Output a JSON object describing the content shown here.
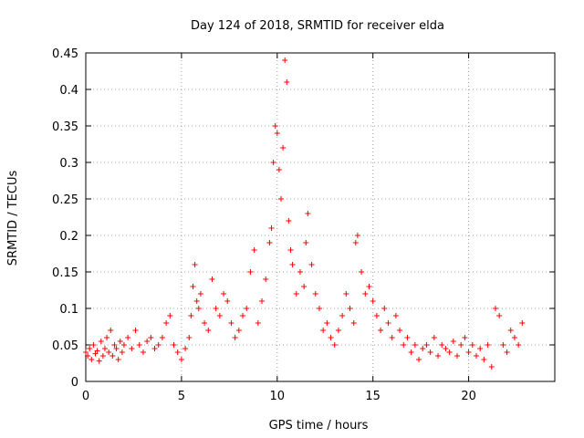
{
  "chart_data": {
    "type": "scatter",
    "title": "Day 124 of 2018, SRMTID for receiver elda",
    "xlabel": "GPS time / hours",
    "ylabel": "SRMTID / TECUs",
    "xlim": [
      0,
      24.5
    ],
    "ylim": [
      0,
      0.45
    ],
    "xticks": [
      0,
      5,
      10,
      15,
      20
    ],
    "yticks": [
      0,
      0.05,
      0.1,
      0.15,
      0.2,
      0.25,
      0.3,
      0.35,
      0.4,
      0.45
    ],
    "grid": true,
    "marker": "+",
    "color": "#ff0000",
    "x_range_observed": [
      0,
      22.8
    ],
    "series": [
      {
        "name": "SRMTID",
        "x": [
          0.0,
          0.1,
          0.2,
          0.3,
          0.4,
          0.5,
          0.6,
          0.7,
          0.8,
          0.9,
          1.0,
          1.1,
          1.2,
          1.3,
          1.4,
          1.5,
          1.6,
          1.7,
          1.8,
          1.9,
          2.0,
          2.2,
          2.4,
          2.6,
          2.8,
          3.0,
          3.2,
          3.4,
          3.6,
          3.8,
          4.0,
          4.2,
          4.4,
          4.6,
          4.8,
          5.0,
          5.2,
          5.4,
          5.5,
          5.6,
          5.7,
          5.8,
          5.9,
          6.0,
          6.2,
          6.4,
          6.6,
          6.8,
          7.0,
          7.2,
          7.4,
          7.6,
          7.8,
          8.0,
          8.2,
          8.4,
          8.6,
          8.8,
          9.0,
          9.2,
          9.4,
          9.6,
          9.7,
          9.8,
          9.9,
          10.0,
          10.1,
          10.2,
          10.3,
          10.4,
          10.5,
          10.6,
          10.7,
          10.8,
          11.0,
          11.2,
          11.4,
          11.5,
          11.6,
          11.8,
          12.0,
          12.2,
          12.4,
          12.6,
          12.8,
          13.0,
          13.2,
          13.4,
          13.6,
          13.8,
          14.0,
          14.1,
          14.2,
          14.4,
          14.6,
          14.8,
          15.0,
          15.2,
          15.4,
          15.6,
          15.8,
          16.0,
          16.2,
          16.4,
          16.6,
          16.8,
          17.0,
          17.2,
          17.4,
          17.6,
          17.8,
          18.0,
          18.2,
          18.4,
          18.6,
          18.8,
          19.0,
          19.2,
          19.4,
          19.6,
          19.8,
          20.0,
          20.2,
          20.4,
          20.6,
          20.8,
          21.0,
          21.2,
          21.4,
          21.6,
          21.8,
          22.0,
          22.2,
          22.4,
          22.6,
          22.8
        ],
        "y": [
          0.04,
          0.035,
          0.045,
          0.03,
          0.05,
          0.038,
          0.042,
          0.028,
          0.055,
          0.035,
          0.045,
          0.06,
          0.04,
          0.07,
          0.035,
          0.05,
          0.045,
          0.03,
          0.055,
          0.04,
          0.05,
          0.06,
          0.045,
          0.07,
          0.05,
          0.04,
          0.055,
          0.06,
          0.045,
          0.05,
          0.06,
          0.08,
          0.09,
          0.05,
          0.04,
          0.03,
          0.045,
          0.06,
          0.09,
          0.13,
          0.16,
          0.11,
          0.1,
          0.12,
          0.08,
          0.07,
          0.14,
          0.1,
          0.09,
          0.12,
          0.11,
          0.08,
          0.06,
          0.07,
          0.09,
          0.1,
          0.15,
          0.18,
          0.08,
          0.11,
          0.14,
          0.19,
          0.21,
          0.3,
          0.35,
          0.34,
          0.29,
          0.25,
          0.32,
          0.44,
          0.41,
          0.22,
          0.18,
          0.16,
          0.12,
          0.15,
          0.13,
          0.19,
          0.23,
          0.16,
          0.12,
          0.1,
          0.07,
          0.08,
          0.06,
          0.05,
          0.07,
          0.09,
          0.12,
          0.1,
          0.08,
          0.19,
          0.2,
          0.15,
          0.12,
          0.13,
          0.11,
          0.09,
          0.07,
          0.1,
          0.08,
          0.06,
          0.09,
          0.07,
          0.05,
          0.06,
          0.04,
          0.05,
          0.03,
          0.045,
          0.05,
          0.04,
          0.06,
          0.035,
          0.05,
          0.045,
          0.04,
          0.055,
          0.035,
          0.05,
          0.06,
          0.04,
          0.05,
          0.035,
          0.045,
          0.03,
          0.05,
          0.02,
          0.1,
          0.09,
          0.05,
          0.04,
          0.07,
          0.06,
          0.05,
          0.08
        ]
      }
    ]
  }
}
